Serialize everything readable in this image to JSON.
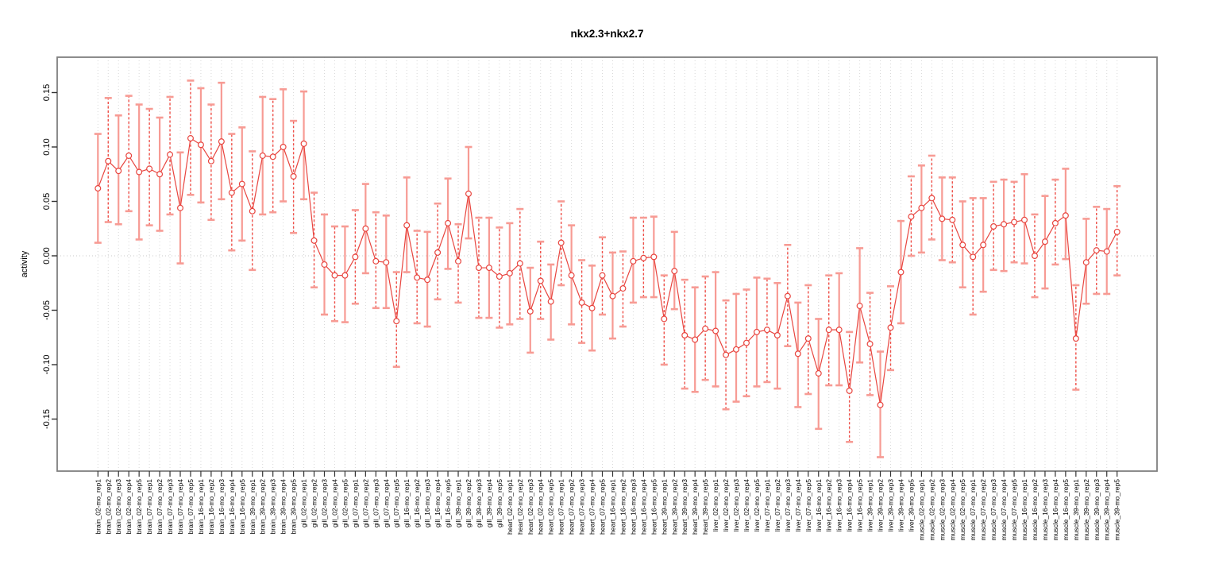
{
  "page": {
    "background": "#ffffff"
  },
  "chart_data": {
    "type": "line",
    "subtype": "points-with-error-bars",
    "title": "nkx2.3+nkx2.7",
    "xlabel": "",
    "ylabel": "activity",
    "ylim": [
      -0.198,
      0.183
    ],
    "yticks": [
      -0.15,
      -0.1,
      -0.05,
      0.0,
      0.05,
      0.1,
      0.15
    ],
    "ytick_labels": [
      "-0.15",
      "-0.10",
      "-0.05",
      "0.00",
      "0.05",
      "0.10",
      "0.15"
    ],
    "grid": "vertical dotted gridline at every category; dotted horizontal line at y=0",
    "legend_position": "none",
    "colors": {
      "point_and_line": "#e8453f",
      "error_bar_solid": "#f79b94",
      "error_bar_dashed": "#ef4f48",
      "error_bar_cap": "#f79b94",
      "gridline": "#d8d8d8",
      "zero_line": "#c9c9c9",
      "frame": "#808080",
      "tick": "#333333"
    },
    "categories": [
      "brain_02-mo_rep1",
      "brain_02-mo_rep2",
      "brain_02-mo_rep3",
      "brain_02-mo_rep4",
      "brain_02-mo_rep5",
      "brain_07-mo_rep1",
      "brain_07-mo_rep2",
      "brain_07-mo_rep3",
      "brain_07-mo_rep4",
      "brain_07-mo_rep5",
      "brain_16-mo_rep1",
      "brain_16-mo_rep2",
      "brain_16-mo_rep3",
      "brain_16-mo_rep4",
      "brain_16-mo_rep5",
      "brain_39-mo_rep1",
      "brain_39-mo_rep2",
      "brain_39-mo_rep3",
      "brain_39-mo_rep4",
      "brain_39-mo_rep5",
      "gill_02-mo_rep1",
      "gill_02-mo_rep2",
      "gill_02-mo_rep3",
      "gill_02-mo_rep4",
      "gill_02-mo_rep5",
      "gill_07-mo_rep1",
      "gill_07-mo_rep2",
      "gill_07-mo_rep3",
      "gill_07-mo_rep4",
      "gill_07-mo_rep5",
      "gill_16-mo_rep1",
      "gill_16-mo_rep2",
      "gill_16-mo_rep3",
      "gill_16-mo_rep4",
      "gill_16-mo_rep5",
      "gill_39-mo_rep1",
      "gill_39-mo_rep2",
      "gill_39-mo_rep3",
      "gill_39-mo_rep4",
      "gill_39-mo_rep5",
      "heart_02-mo_rep1",
      "heart_02-mo_rep2",
      "heart_02-mo_rep3",
      "heart_02-mo_rep4",
      "heart_02-mo_rep5",
      "heart_07-mo_rep1",
      "heart_07-mo_rep2",
      "heart_07-mo_rep3",
      "heart_07-mo_rep4",
      "heart_07-mo_rep5",
      "heart_16-mo_rep1",
      "heart_16-mo_rep2",
      "heart_16-mo_rep3",
      "heart_16-mo_rep4",
      "heart_16-mo_rep5",
      "heart_39-mo_rep1",
      "heart_39-mo_rep2",
      "heart_39-mo_rep3",
      "heart_39-mo_rep4",
      "heart_39-mo_rep5",
      "liver_02-mo_rep1",
      "liver_02-mo_rep2",
      "liver_02-mo_rep3",
      "liver_02-mo_rep4",
      "liver_02-mo_rep5",
      "liver_07-mo_rep1",
      "liver_07-mo_rep2",
      "liver_07-mo_rep3",
      "liver_07-mo_rep4",
      "liver_07-mo_rep5",
      "liver_16-mo_rep1",
      "liver_16-mo_rep2",
      "liver_16-mo_rep3",
      "liver_16-mo_rep4",
      "liver_16-mo_rep5",
      "liver_39-mo_rep1",
      "liver_39-mo_rep2",
      "liver_39-mo_rep3",
      "liver_39-mo_rep4",
      "liver_39-mo_rep5",
      "muscle_02-mo_rep1",
      "muscle_02-mo_rep2",
      "muscle_02-mo_rep3",
      "muscle_02-mo_rep4",
      "muscle_02-mo_rep5",
      "muscle_07-mo_rep1",
      "muscle_07-mo_rep2",
      "muscle_07-mo_rep3",
      "muscle_07-mo_rep4",
      "muscle_07-mo_rep5",
      "muscle_16-mo_rep1",
      "muscle_16-mo_rep2",
      "muscle_16-mo_rep3",
      "muscle_16-mo_rep4",
      "muscle_16-mo_rep5",
      "muscle_39-mo_rep1",
      "muscle_39-mo_rep2",
      "muscle_39-mo_rep3",
      "muscle_39-mo_rep4",
      "muscle_39-mo_rep5"
    ],
    "values": [
      0.062,
      0.087,
      0.078,
      0.092,
      0.077,
      0.08,
      0.075,
      0.093,
      0.044,
      0.108,
      0.102,
      0.087,
      0.105,
      0.058,
      0.066,
      0.041,
      0.092,
      0.091,
      0.1,
      0.073,
      0.103,
      0.014,
      -0.008,
      -0.018,
      -0.018,
      -0.001,
      0.025,
      -0.005,
      -0.006,
      -0.06,
      0.028,
      -0.02,
      -0.022,
      0.003,
      0.03,
      -0.005,
      0.057,
      -0.011,
      -0.011,
      -0.019,
      -0.016,
      -0.007,
      -0.051,
      -0.023,
      -0.042,
      0.012,
      -0.018,
      -0.043,
      -0.048,
      -0.018,
      -0.037,
      -0.03,
      -0.005,
      -0.002,
      -0.001,
      -0.058,
      -0.014,
      -0.073,
      -0.077,
      -0.067,
      -0.069,
      -0.091,
      -0.086,
      -0.08,
      -0.07,
      -0.068,
      -0.073,
      -0.037,
      -0.09,
      -0.076,
      -0.108,
      -0.068,
      -0.068,
      -0.124,
      -0.046,
      -0.081,
      -0.137,
      -0.066,
      -0.015,
      0.036,
      0.044,
      0.053,
      0.034,
      0.033,
      0.01,
      -0.001,
      0.01,
      0.027,
      0.029,
      0.031,
      0.033,
      0.0,
      0.013,
      0.03,
      0.037,
      -0.076,
      -0.006,
      0.005,
      0.004,
      0.022
    ],
    "lower": [
      0.012,
      0.031,
      0.029,
      0.041,
      0.015,
      0.028,
      0.023,
      0.038,
      -0.007,
      0.056,
      0.049,
      0.033,
      0.052,
      0.005,
      0.014,
      -0.013,
      0.038,
      0.04,
      0.05,
      0.021,
      0.052,
      -0.029,
      -0.054,
      -0.06,
      -0.061,
      -0.044,
      -0.016,
      -0.048,
      -0.048,
      -0.102,
      -0.015,
      -0.062,
      -0.065,
      -0.04,
      -0.012,
      -0.043,
      0.016,
      -0.057,
      -0.057,
      -0.066,
      -0.063,
      -0.058,
      -0.089,
      -0.058,
      -0.077,
      -0.027,
      -0.063,
      -0.08,
      -0.087,
      -0.054,
      -0.076,
      -0.065,
      -0.043,
      -0.038,
      -0.038,
      -0.1,
      -0.049,
      -0.122,
      -0.125,
      -0.114,
      -0.12,
      -0.141,
      -0.134,
      -0.129,
      -0.12,
      -0.116,
      -0.122,
      -0.083,
      -0.139,
      -0.127,
      -0.159,
      -0.119,
      -0.119,
      -0.171,
      -0.098,
      -0.128,
      -0.185,
      -0.105,
      -0.062,
      0.0,
      0.003,
      0.015,
      -0.004,
      -0.006,
      -0.029,
      -0.054,
      -0.033,
      -0.013,
      -0.014,
      -0.006,
      -0.007,
      -0.038,
      -0.03,
      -0.008,
      -0.003,
      -0.123,
      -0.044,
      -0.035,
      -0.035,
      -0.018
    ],
    "upper": [
      0.112,
      0.145,
      0.129,
      0.147,
      0.139,
      0.135,
      0.127,
      0.146,
      0.095,
      0.161,
      0.154,
      0.139,
      0.159,
      0.112,
      0.118,
      0.096,
      0.146,
      0.144,
      0.153,
      0.124,
      0.151,
      0.058,
      0.038,
      0.027,
      0.027,
      0.042,
      0.066,
      0.04,
      0.037,
      -0.015,
      0.072,
      0.023,
      0.022,
      0.048,
      0.071,
      0.029,
      0.1,
      0.035,
      0.035,
      0.026,
      0.03,
      0.043,
      -0.011,
      0.013,
      -0.008,
      0.05,
      0.028,
      -0.004,
      -0.009,
      0.017,
      0.003,
      0.004,
      0.035,
      0.035,
      0.036,
      -0.018,
      0.022,
      -0.022,
      -0.029,
      -0.019,
      -0.015,
      -0.041,
      -0.035,
      -0.031,
      -0.02,
      -0.021,
      -0.025,
      0.01,
      -0.043,
      -0.027,
      -0.058,
      -0.018,
      -0.016,
      -0.07,
      0.007,
      -0.034,
      -0.088,
      -0.028,
      0.032,
      0.073,
      0.083,
      0.092,
      0.072,
      0.072,
      0.05,
      0.053,
      0.053,
      0.068,
      0.07,
      0.068,
      0.075,
      0.038,
      0.055,
      0.07,
      0.08,
      -0.027,
      0.034,
      0.045,
      0.043,
      0.064
    ]
  }
}
